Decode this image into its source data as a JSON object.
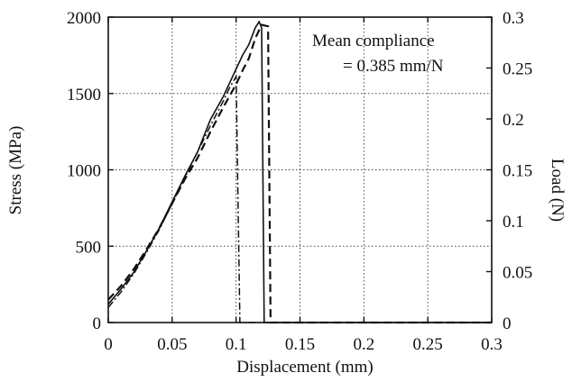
{
  "chart_data": {
    "type": "line",
    "title": "",
    "xlabel": "Displacement (mm)",
    "ylabel": "Stress (MPa)",
    "y2label": "Load (N)",
    "xlim": [
      0,
      0.3
    ],
    "ylim": [
      0,
      2000
    ],
    "y2lim": [
      0,
      0.3
    ],
    "xticks": [
      0,
      0.05,
      0.1,
      0.15,
      0.2,
      0.25,
      0.3
    ],
    "xtick_labels": [
      "0",
      "0.05",
      "0.1",
      "0.15",
      "0.2",
      "0.25",
      "0.3"
    ],
    "yticks": [
      0,
      500,
      1000,
      1500,
      2000
    ],
    "ytick_labels": [
      "0",
      "500",
      "1000",
      "1500",
      "2000"
    ],
    "y2ticks": [
      0,
      0.05,
      0.1,
      0.15,
      0.2,
      0.25,
      0.3
    ],
    "y2tick_labels": [
      "0",
      "0.05",
      "0.1",
      "0.15",
      "0.2",
      "0.25",
      "0.3"
    ],
    "grid": true,
    "annotation": {
      "line1": "Mean compliance",
      "line2": "= 0.385 mm/N"
    },
    "series": [
      {
        "style": "solid",
        "x": [
          0,
          0.01,
          0.02,
          0.03,
          0.04,
          0.05,
          0.06,
          0.07,
          0.08,
          0.09,
          0.1,
          0.105,
          0.11,
          0.115,
          0.118,
          0.12,
          0.122,
          0.3
        ],
        "y": [
          120,
          220,
          330,
          470,
          620,
          790,
          960,
          1120,
          1330,
          1480,
          1660,
          1750,
          1820,
          1930,
          1970,
          1930,
          0,
          0
        ]
      },
      {
        "style": "dashed",
        "x": [
          0,
          0.01,
          0.02,
          0.03,
          0.04,
          0.05,
          0.06,
          0.07,
          0.08,
          0.09,
          0.1,
          0.105,
          0.11,
          0.115,
          0.12,
          0.125,
          0.127,
          0.3
        ],
        "y": [
          150,
          240,
          350,
          480,
          620,
          780,
          940,
          1080,
          1250,
          1410,
          1560,
          1650,
          1730,
          1860,
          1950,
          1940,
          0,
          0
        ]
      },
      {
        "style": "dash-dot",
        "x": [
          0,
          0.01,
          0.02,
          0.03,
          0.04,
          0.05,
          0.06,
          0.07,
          0.08,
          0.09,
          0.095,
          0.1,
          0.103,
          0.3
        ],
        "y": [
          100,
          200,
          320,
          460,
          610,
          780,
          950,
          1120,
          1290,
          1450,
          1540,
          1610,
          0,
          0
        ]
      }
    ]
  }
}
